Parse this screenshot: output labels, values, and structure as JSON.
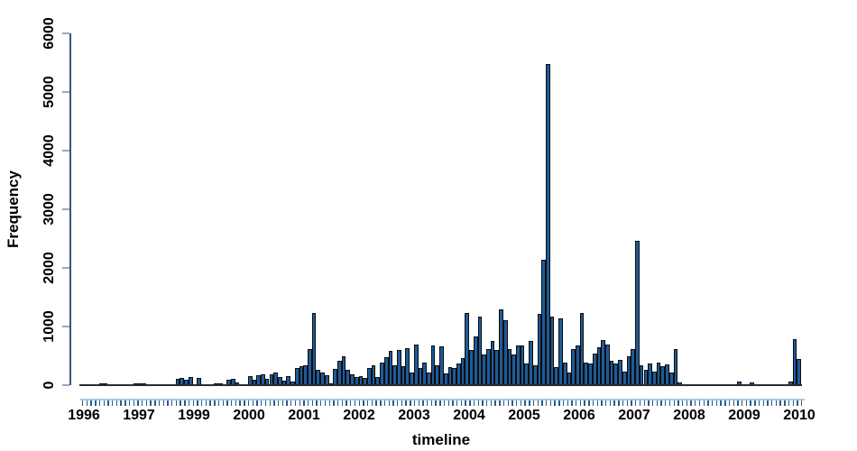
{
  "chart_data": {
    "type": "bar",
    "title": "",
    "xlabel": "timeline",
    "ylabel": "Frequency",
    "ylim": [
      0,
      6000
    ],
    "y_ticks": [
      0,
      1000,
      2000,
      3000,
      4000,
      5000,
      6000
    ],
    "x_tick_labels": [
      "1996",
      "1997",
      "1999",
      "2000",
      "2001",
      "2002",
      "2003",
      "2004",
      "2005",
      "2006",
      "2007",
      "2008",
      "2009",
      "2010"
    ],
    "grid": "off",
    "legend": "none",
    "bar_unit": "time bin (minor tick per bar)",
    "values": [
      0,
      0,
      0,
      0,
      25,
      30,
      0,
      0,
      0,
      0,
      0,
      0,
      30,
      30,
      25,
      0,
      0,
      0,
      0,
      0,
      0,
      0,
      110,
      120,
      95,
      140,
      0,
      120,
      0,
      0,
      0,
      25,
      25,
      0,
      95,
      110,
      40,
      15,
      20,
      150,
      95,
      170,
      185,
      110,
      185,
      220,
      135,
      80,
      150,
      65,
      300,
      325,
      340,
      620,
      1235,
      260,
      210,
      170,
      30,
      275,
      415,
      490,
      260,
      185,
      135,
      150,
      120,
      290,
      340,
      135,
      390,
      480,
      585,
      340,
      595,
      325,
      630,
      210,
      695,
      295,
      390,
      210,
      670,
      340,
      660,
      195,
      315,
      295,
      365,
      465,
      1225,
      595,
      825,
      1175,
      520,
      610,
      750,
      595,
      1295,
      1110,
      620,
      520,
      670,
      680,
      365,
      750,
      340,
      1210,
      2135,
      5470,
      1170,
      315,
      1135,
      390,
      210,
      620,
      670,
      1235,
      390,
      365,
      545,
      645,
      775,
      695,
      415,
      365,
      425,
      235,
      490,
      620,
      2465,
      340,
      260,
      375,
      235,
      390,
      325,
      355,
      220,
      610,
      45,
      15,
      0,
      0,
      0,
      0,
      0,
      12,
      12,
      0,
      12,
      12,
      0,
      0,
      55,
      0,
      0,
      40,
      15,
      15,
      15,
      15,
      0,
      0,
      20,
      20,
      65,
      790,
      440
    ],
    "colors": {
      "bar_fill": "#1D5B99",
      "bar_border": "#0d0d0d",
      "baseline": "#2b2b2b",
      "y_axis_line": "#33567E",
      "y_tick": "#90A9C9",
      "x_axis_line": "#A9C6E4",
      "x_tick": "#2B5A8C",
      "text": "#000000",
      "background": "#ffffff"
    }
  }
}
